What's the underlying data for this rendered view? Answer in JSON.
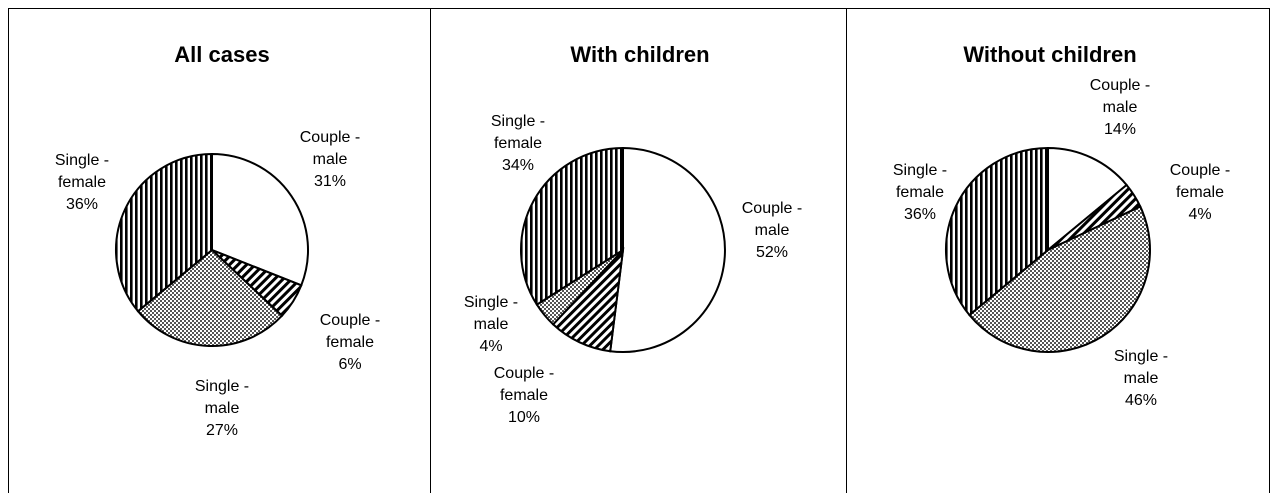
{
  "chart_data": [
    {
      "type": "pie",
      "title": "All cases",
      "slices": [
        {
          "name": "Couple - male",
          "label": [
            "Couple -",
            "male",
            "31%"
          ],
          "value": 31,
          "pattern": "white"
        },
        {
          "name": "Couple - female",
          "label": [
            "Couple -",
            "female",
            "6%"
          ],
          "value": 6,
          "pattern": "diagonal"
        },
        {
          "name": "Single - male",
          "label": [
            "Single -",
            "male",
            "27%"
          ],
          "value": 27,
          "pattern": "checker"
        },
        {
          "name": "Single - female",
          "label": [
            "Single -",
            "female",
            "36%"
          ],
          "value": 36,
          "pattern": "vertical"
        }
      ]
    },
    {
      "type": "pie",
      "title": "With children",
      "slices": [
        {
          "name": "Couple - male",
          "label": [
            "Couple -",
            "male",
            "52%"
          ],
          "value": 52,
          "pattern": "white"
        },
        {
          "name": "Couple - female",
          "label": [
            "Couple -",
            "female",
            "10%"
          ],
          "value": 10,
          "pattern": "diagonal"
        },
        {
          "name": "Single - male",
          "label": [
            "Single -",
            "male",
            "4%"
          ],
          "value": 4,
          "pattern": "checker"
        },
        {
          "name": "Single - female",
          "label": [
            "Single -",
            "female",
            "34%"
          ],
          "value": 34,
          "pattern": "vertical"
        }
      ]
    },
    {
      "type": "pie",
      "title": "Without children",
      "slices": [
        {
          "name": "Couple - male",
          "label": [
            "Couple -",
            "male",
            "14%"
          ],
          "value": 14,
          "pattern": "white"
        },
        {
          "name": "Couple - female",
          "label": [
            "Couple -",
            "female",
            "4%"
          ],
          "value": 4,
          "pattern": "diagonal"
        },
        {
          "name": "Single - male",
          "label": [
            "Single -",
            "male",
            "46%"
          ],
          "value": 46,
          "pattern": "checker"
        },
        {
          "name": "Single - female",
          "label": [
            "Single -",
            "female",
            "36%"
          ],
          "value": 36,
          "pattern": "vertical"
        }
      ]
    }
  ]
}
